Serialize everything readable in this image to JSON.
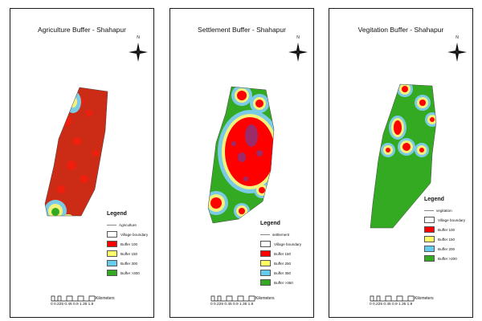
{
  "panels": [
    {
      "title": "Agriculture Buffer - Shahapur",
      "north_label": "N",
      "legend": {
        "title": "Legend",
        "line_label": "Agriculture",
        "boundary_label": "Village boundary",
        "items": [
          {
            "label": "Buffer 100",
            "color": "#ff0000"
          },
          {
            "label": "Buffer 150",
            "color": "#ffff66"
          },
          {
            "label": "Buffer 300",
            "color": "#66ccee"
          },
          {
            "label": "Buffer >300",
            "color": "#33aa22"
          }
        ]
      },
      "scale": {
        "ticks": "0 0.225 0.45   0.9    1.35    1.8",
        "unit": "Kilometers"
      }
    },
    {
      "title": "Settlement Buffer - Shahapur",
      "north_label": "N",
      "legend": {
        "title": "Legend",
        "line_label": "settlement",
        "boundary_label": "Village boundary",
        "items": [
          {
            "label": "Buffer 150",
            "color": "#ff0000"
          },
          {
            "label": "Buffer 250",
            "color": "#ffff66"
          },
          {
            "label": "Buffer 350",
            "color": "#66ccee"
          },
          {
            "label": "Buffer >350",
            "color": "#33aa22"
          }
        ]
      },
      "scale": {
        "ticks": "0 0.225 0.45   0.9    1.35    1.8",
        "unit": "Kilometers"
      }
    },
    {
      "title": "Vegitation Buffer - Shahapur",
      "north_label": "N",
      "legend": {
        "title": "Legend",
        "line_label": "vegitation",
        "boundary_label": "Village boundary",
        "items": [
          {
            "label": "Buffer 100",
            "color": "#ff0000"
          },
          {
            "label": "Buffer 150",
            "color": "#ffff66"
          },
          {
            "label": "Buffer 200",
            "color": "#66ccee"
          },
          {
            "label": "Buffer >200",
            "color": "#33aa22"
          }
        ]
      },
      "scale": {
        "ticks": "0 0.225 0.45   0.9    1.35    1.8",
        "unit": "Kilometers"
      }
    }
  ]
}
